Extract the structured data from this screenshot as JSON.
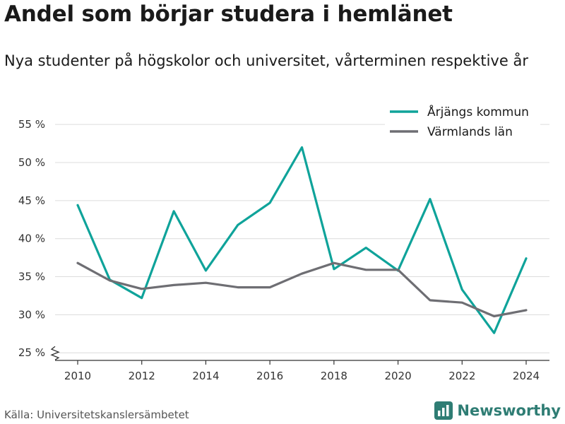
{
  "title": "Andel som börjar studera i hemlänet",
  "subtitle": "Nya studenter på högskolor och universitet, vårterminen respektive år",
  "source": "Källa: Universitetskanslersämbetet",
  "brand": {
    "name": "Newsworthy",
    "icon": "bar-chart-logo-icon"
  },
  "chart_data": {
    "type": "line",
    "x": [
      2010,
      2011,
      2012,
      2013,
      2014,
      2015,
      2016,
      2017,
      2018,
      2019,
      2020,
      2021,
      2022,
      2023,
      2024
    ],
    "x_ticks": [
      "2010",
      "2012",
      "2014",
      "2016",
      "2018",
      "2020",
      "2022",
      "2024"
    ],
    "y_ticks": [
      "25 %",
      "30 %",
      "35 %",
      "40 %",
      "45 %",
      "50 %",
      "55 %"
    ],
    "y_tick_values": [
      25,
      30,
      35,
      40,
      45,
      50,
      55
    ],
    "ylim": [
      24,
      56.5
    ],
    "xlim": [
      2009.5,
      2024.7
    ],
    "grid": true,
    "y_axis_break": true,
    "legend_position": "top-right",
    "series": [
      {
        "name": "Årjängs kommun",
        "color": "#0fa39a",
        "values": [
          44.4,
          34.6,
          32.2,
          43.6,
          35.8,
          41.8,
          44.7,
          52.0,
          36.0,
          38.8,
          35.8,
          45.2,
          33.3,
          27.6,
          37.4
        ]
      },
      {
        "name": "Värmlands län",
        "color": "#6e6e73",
        "values": [
          36.8,
          34.5,
          33.4,
          33.9,
          34.2,
          33.6,
          33.6,
          35.4,
          36.8,
          35.9,
          35.9,
          31.9,
          31.6,
          29.8,
          30.6
        ]
      }
    ],
    "gridline_color": "#dcdcdc",
    "axis_color": "#333333"
  }
}
